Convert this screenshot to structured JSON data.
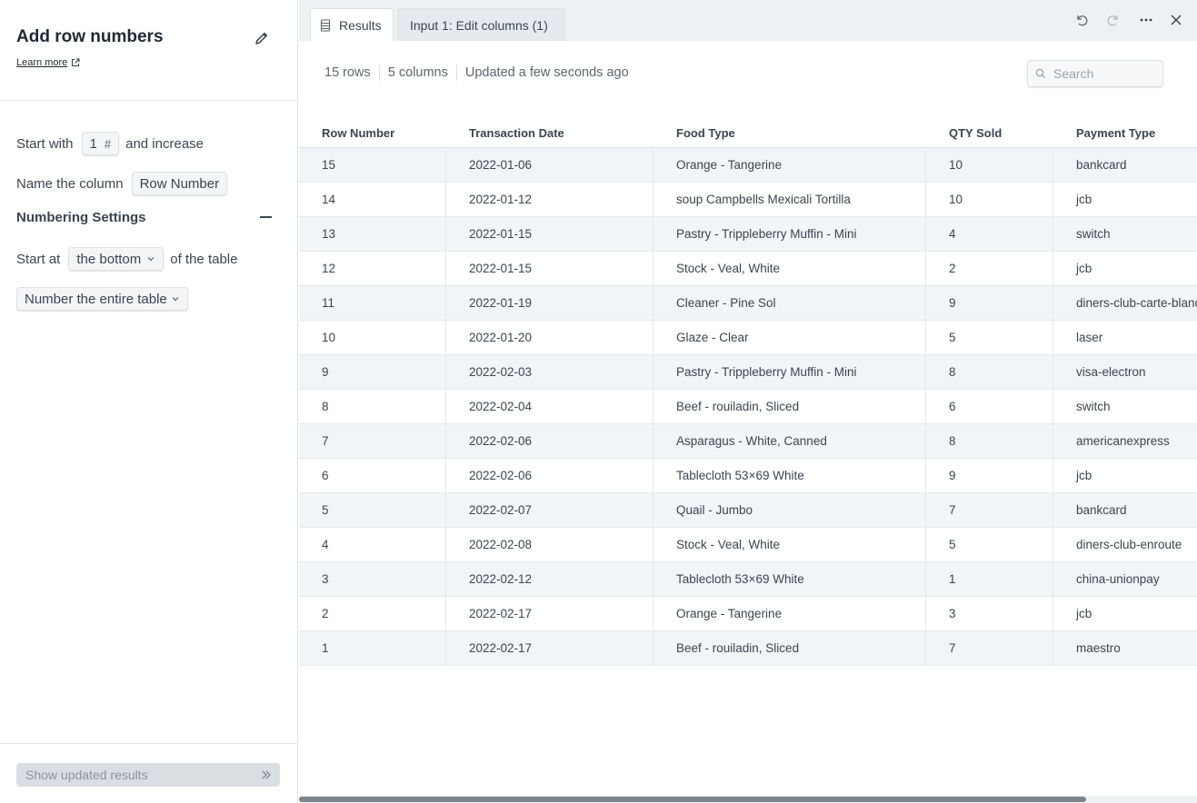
{
  "config": {
    "title": "Add row numbers",
    "learn_more": "Learn more",
    "start_with_label": "Start with",
    "start_value": "1",
    "start_value_icon": "#",
    "and_increase": "and increase",
    "name_column_label": "Name the column",
    "column_name": "Row Number",
    "numbering_settings": "Numbering Settings",
    "start_at_label": "Start at",
    "start_at_value": "the bottom",
    "of_table": "of the table",
    "number_scope": "Number the entire table",
    "show_results": "Show updated results"
  },
  "tabs": [
    {
      "label": "Results",
      "icon": "table-icon"
    },
    {
      "label": "Input 1: Edit columns (1)"
    }
  ],
  "toolbar_icons": [
    "undo-icon",
    "redo-icon",
    "more-icon",
    "close-icon"
  ],
  "summary": {
    "rows": "15 rows",
    "columns": "5 columns",
    "updated": "Updated a few seconds ago"
  },
  "search": {
    "placeholder": "Search"
  },
  "table": {
    "columns": [
      "Row Number",
      "Transaction Date",
      "Food Type",
      "QTY Sold",
      "Payment Type"
    ],
    "rows": [
      [
        "15",
        "2022-01-06",
        "Orange - Tangerine",
        "10",
        "bankcard"
      ],
      [
        "14",
        "2022-01-12",
        "soup Campbells Mexicali Tortilla",
        "10",
        "jcb"
      ],
      [
        "13",
        "2022-01-15",
        "Pastry - Trippleberry Muffin - Mini",
        "4",
        "switch"
      ],
      [
        "12",
        "2022-01-15",
        "Stock - Veal, White",
        "2",
        "jcb"
      ],
      [
        "11",
        "2022-01-19",
        "Cleaner - Pine Sol",
        "9",
        "diners-club-carte-blanche"
      ],
      [
        "10",
        "2022-01-20",
        "Glaze - Clear",
        "5",
        "laser"
      ],
      [
        "9",
        "2022-02-03",
        "Pastry - Trippleberry Muffin - Mini",
        "8",
        "visa-electron"
      ],
      [
        "8",
        "2022-02-04",
        "Beef - rouiladin, Sliced",
        "6",
        "switch"
      ],
      [
        "7",
        "2022-02-06",
        "Asparagus - White, Canned",
        "8",
        "americanexpress"
      ],
      [
        "6",
        "2022-02-06",
        "Tablecloth 53×69 White",
        "9",
        "jcb"
      ],
      [
        "5",
        "2022-02-07",
        "Quail - Jumbo",
        "7",
        "bankcard"
      ],
      [
        "4",
        "2022-02-08",
        "Stock - Veal, White",
        "5",
        "diners-club-enroute"
      ],
      [
        "3",
        "2022-02-12",
        "Tablecloth 53×69 White",
        "1",
        "china-unionpay"
      ],
      [
        "2",
        "2022-02-17",
        "Orange - Tangerine",
        "3",
        "jcb"
      ],
      [
        "1",
        "2022-02-17",
        "Beef - rouiladin, Sliced",
        "7",
        "maestro"
      ]
    ]
  }
}
